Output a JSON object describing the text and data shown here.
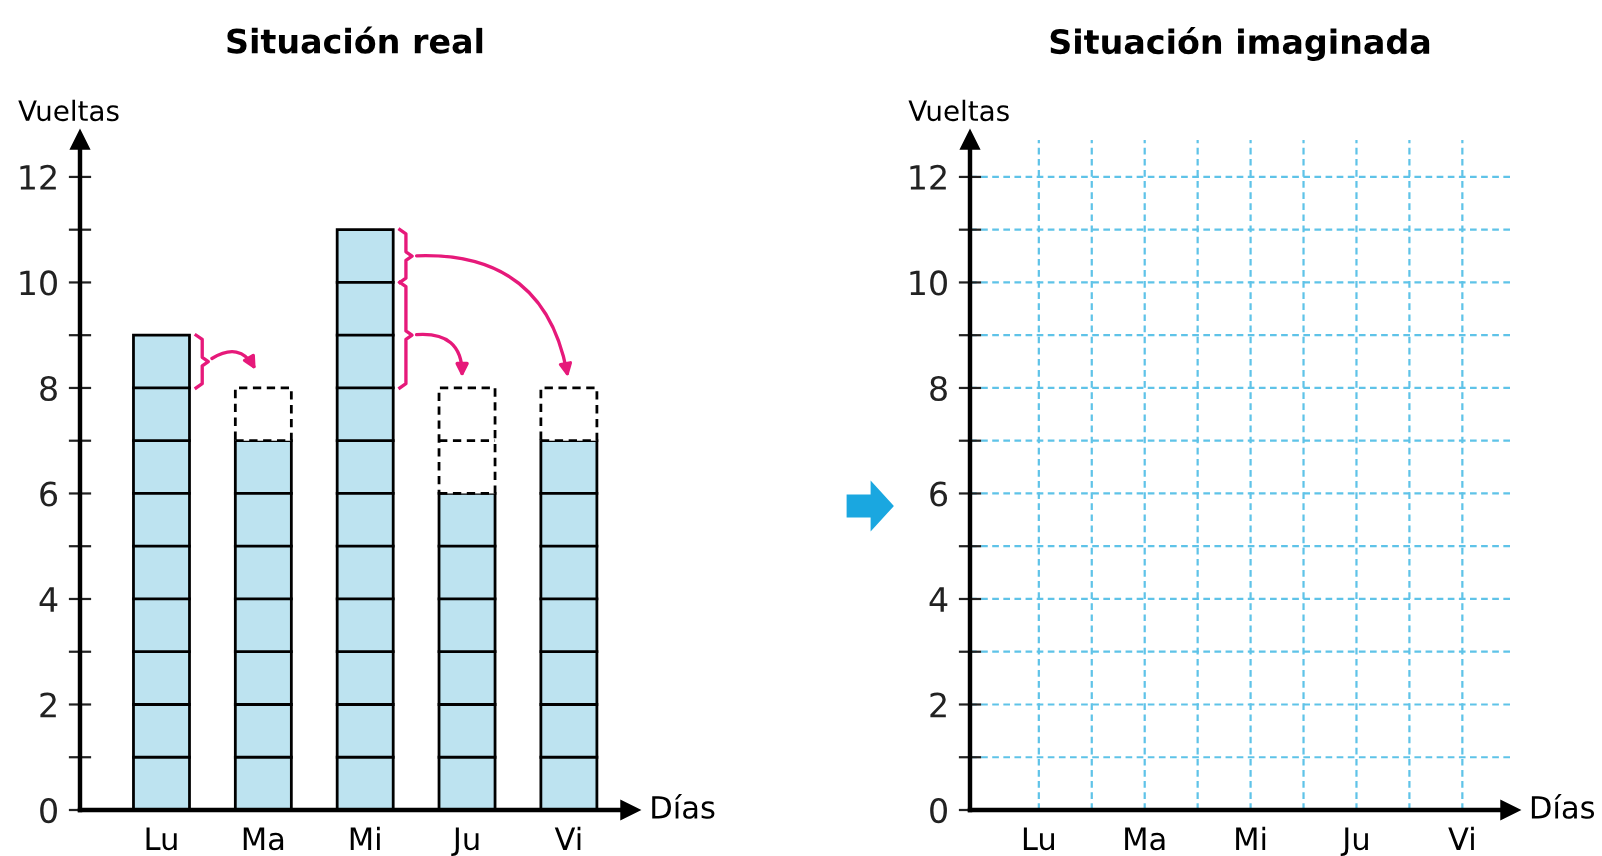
{
  "chart_data": [
    {
      "type": "bar",
      "title": "Situación real",
      "xlabel": "Días",
      "ylabel": "Vueltas",
      "categories": [
        "Lu",
        "Ma",
        "Mi",
        "Ju",
        "Vi"
      ],
      "stacked": true,
      "series": [
        {
          "color": "#bde3f0",
          "values": [
            9,
            7,
            11,
            6,
            7
          ]
        },
        {
          "color": "#ffffff",
          "line_style": "dashed",
          "values": [
            null,
            1,
            null,
            2,
            1
          ]
        }
      ],
      "ylim": [
        0,
        12.7
      ],
      "yticks": [
        0,
        {
          "value": 1,
          "label": null
        },
        2,
        {
          "value": 3,
          "label": null
        },
        4,
        {
          "value": 5,
          "label": null
        },
        6,
        {
          "value": 7,
          "label": null
        },
        8,
        {
          "value": 9,
          "label": null
        },
        10,
        {
          "value": 11,
          "label": null
        },
        12
      ],
      "grid": false
    },
    {
      "type": "bar",
      "title": "Situación imaginada",
      "xlabel": "Días",
      "ylabel": "Vueltas",
      "categories": [
        "Lu",
        "Ma",
        "Mi",
        "Ju",
        "Vi"
      ],
      "series": [
        {
          "values": [
            null,
            null,
            null,
            null,
            null
          ]
        }
      ],
      "ylim": [
        0,
        12.7
      ],
      "yticks": [
        0,
        {
          "value": 1,
          "label": null
        },
        2,
        {
          "value": 3,
          "label": null
        },
        4,
        {
          "value": 5,
          "label": null
        },
        6,
        {
          "value": 7,
          "label": null
        },
        8,
        {
          "value": 9,
          "label": null
        },
        10,
        {
          "value": 11,
          "label": null
        },
        12
      ],
      "grid": true
    }
  ]
}
